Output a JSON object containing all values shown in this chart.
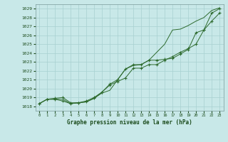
{
  "x": [
    0,
    1,
    2,
    3,
    4,
    5,
    6,
    7,
    8,
    9,
    10,
    11,
    12,
    13,
    14,
    15,
    16,
    17,
    18,
    19,
    20,
    21,
    22,
    23
  ],
  "line1": [
    1018.3,
    1018.8,
    1018.8,
    1018.8,
    1018.3,
    1018.4,
    1018.5,
    1018.9,
    1019.5,
    1019.8,
    1021.0,
    1022.2,
    1022.6,
    1022.7,
    1023.2,
    1024.1,
    1025.0,
    1026.6,
    1026.7,
    1027.1,
    1027.6,
    1028.0,
    1028.8,
    1029.1
  ],
  "line2": [
    1018.3,
    1018.8,
    1018.8,
    1018.6,
    1018.3,
    1018.4,
    1018.5,
    1018.9,
    1019.6,
    1020.4,
    1020.8,
    1021.2,
    1022.3,
    1022.3,
    1022.7,
    1022.7,
    1023.2,
    1023.6,
    1024.1,
    1024.5,
    1025.0,
    1026.6,
    1027.6,
    1028.5
  ],
  "line3": [
    1018.3,
    1018.8,
    1018.9,
    1019.0,
    1018.4,
    1018.4,
    1018.6,
    1019.0,
    1019.6,
    1020.5,
    1021.0,
    1022.2,
    1022.7,
    1022.7,
    1023.2,
    1023.2,
    1023.3,
    1023.4,
    1023.9,
    1024.4,
    1026.3,
    1026.6,
    1028.5,
    1029.0
  ],
  "ylim": [
    1017.5,
    1029.5
  ],
  "xlim": [
    -0.5,
    23.5
  ],
  "yticks": [
    1018,
    1019,
    1020,
    1021,
    1022,
    1023,
    1024,
    1025,
    1026,
    1027,
    1028,
    1029
  ],
  "xticks": [
    0,
    1,
    2,
    3,
    4,
    5,
    6,
    7,
    8,
    9,
    10,
    11,
    12,
    13,
    14,
    15,
    16,
    17,
    18,
    19,
    20,
    21,
    22,
    23
  ],
  "xlabel": "Graphe pression niveau de la mer (hPa)",
  "line_color": "#2d6a2d",
  "marker_color": "#2d6a2d",
  "bg_color": "#c8e8e8",
  "grid_color": "#a8d0d0",
  "text_color": "#1a4a1a",
  "spine_color": "#7a9a9a"
}
